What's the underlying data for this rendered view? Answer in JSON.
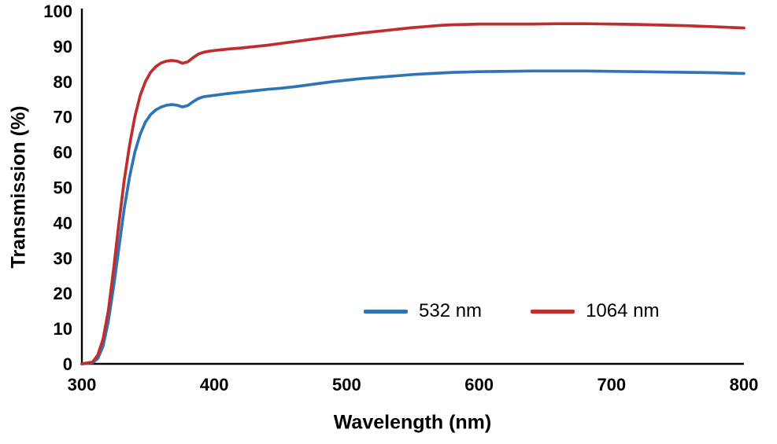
{
  "chart_data": {
    "type": "line",
    "title": "",
    "xlabel": "Wavelength (nm)",
    "ylabel": "Transmission  (%)",
    "xlim": [
      300,
      800
    ],
    "ylim": [
      0,
      100
    ],
    "x_ticks": [
      300,
      400,
      500,
      600,
      700,
      800
    ],
    "y_ticks": [
      0,
      10,
      20,
      30,
      40,
      50,
      60,
      70,
      80,
      90,
      100
    ],
    "grid": false,
    "legend_position": "inside-bottom-center",
    "x": [
      300,
      308,
      312,
      316,
      320,
      324,
      328,
      332,
      336,
      340,
      344,
      348,
      352,
      356,
      360,
      364,
      368,
      372,
      376,
      380,
      384,
      388,
      392,
      396,
      400,
      410,
      420,
      430,
      440,
      450,
      460,
      470,
      480,
      490,
      500,
      510,
      520,
      530,
      540,
      550,
      560,
      570,
      580,
      590,
      600,
      620,
      640,
      660,
      680,
      700,
      720,
      740,
      760,
      780,
      800
    ],
    "series": [
      {
        "name": "532 nm",
        "color": "#2E75B6",
        "values": [
          0,
          0.3,
          1.5,
          5,
          12,
          22,
          33,
          44,
          53,
          60,
          65,
          68.5,
          70.7,
          72,
          72.8,
          73.3,
          73.5,
          73.3,
          72.8,
          73.2,
          74.3,
          75.2,
          75.7,
          75.9,
          76.1,
          76.6,
          77,
          77.4,
          77.8,
          78.1,
          78.5,
          79,
          79.5,
          80,
          80.4,
          80.8,
          81.1,
          81.4,
          81.7,
          82,
          82.2,
          82.4,
          82.6,
          82.7,
          82.8,
          82.9,
          83,
          83,
          83,
          82.9,
          82.8,
          82.7,
          82.6,
          82.5,
          82.3
        ]
      },
      {
        "name": "1064 nm",
        "color": "#BE2E2E",
        "values": [
          0,
          0.5,
          2.5,
          7,
          15,
          27,
          40,
          52,
          62,
          70,
          76,
          80,
          82.7,
          84.3,
          85.3,
          85.8,
          86,
          85.8,
          85.2,
          85.6,
          86.8,
          87.8,
          88.3,
          88.6,
          88.8,
          89.2,
          89.5,
          89.9,
          90.3,
          90.8,
          91.3,
          91.8,
          92.3,
          92.8,
          93.2,
          93.7,
          94.1,
          94.5,
          94.9,
          95.3,
          95.6,
          95.9,
          96.1,
          96.2,
          96.3,
          96.3,
          96.3,
          96.4,
          96.4,
          96.3,
          96.2,
          96,
          95.8,
          95.5,
          95.2
        ]
      }
    ],
    "axis_color": "#000000",
    "background": "#FFFFFF"
  }
}
